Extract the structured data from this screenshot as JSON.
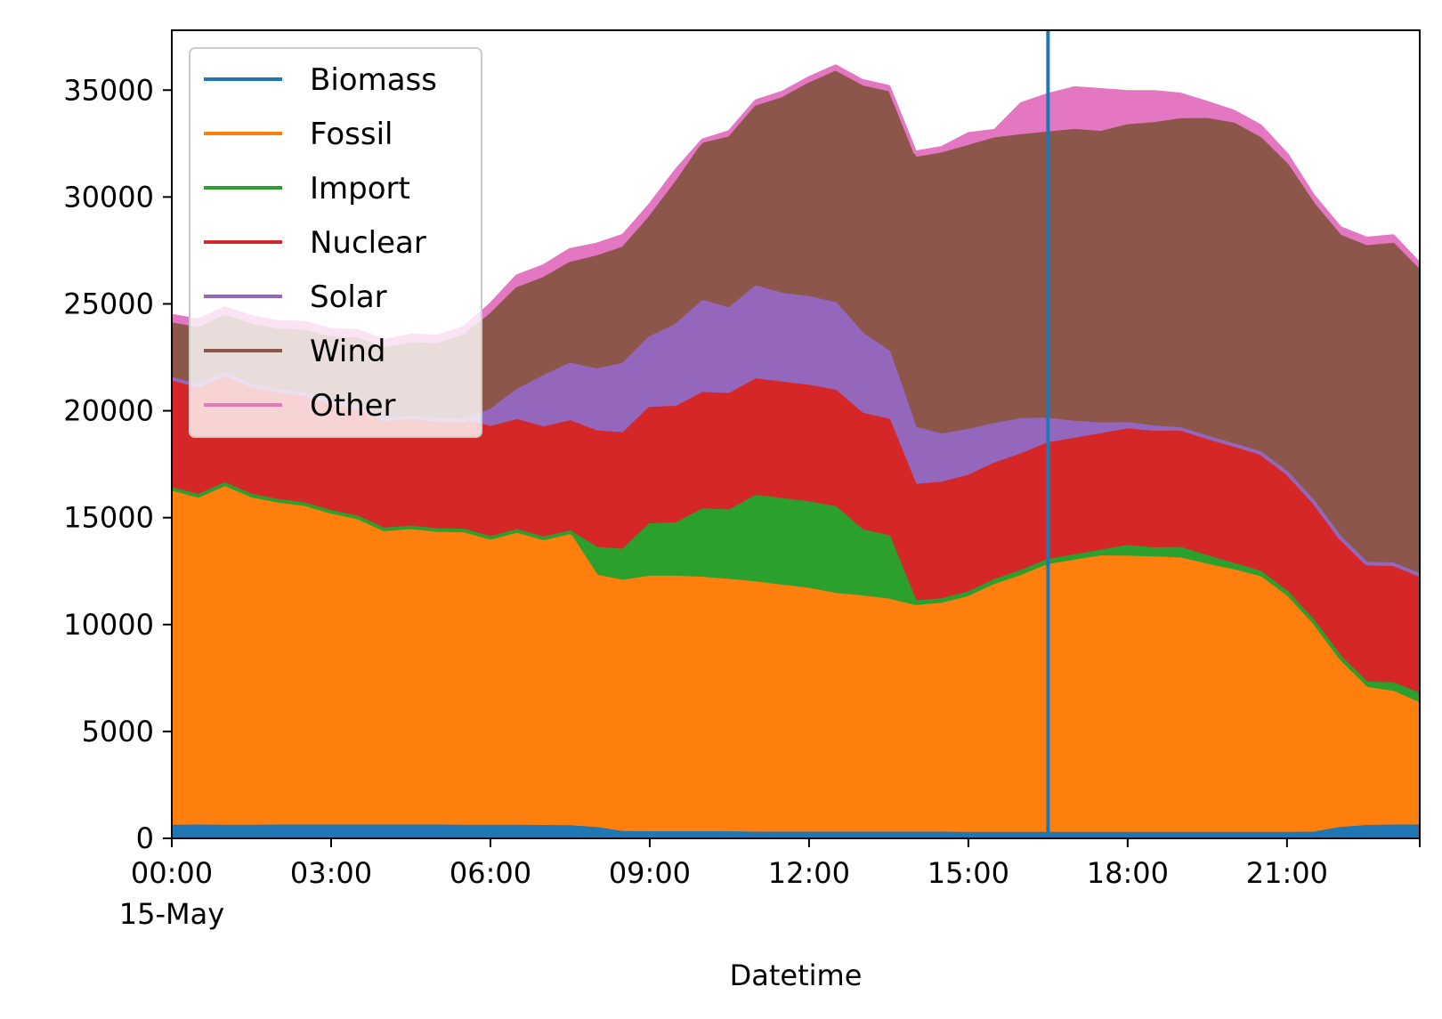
{
  "chart_data": {
    "type": "area",
    "stacked": true,
    "title": "",
    "xlabel": "Datetime",
    "ylabel": "",
    "x_unit_note": "hours of 15-May",
    "xlim": [
      0,
      23.5
    ],
    "ylim": [
      0,
      37800
    ],
    "x": [
      0,
      0.5,
      1,
      1.5,
      2,
      2.5,
      3,
      3.5,
      4,
      4.5,
      5,
      5.5,
      6,
      6.5,
      7,
      7.5,
      8,
      8.5,
      9,
      9.5,
      10,
      10.5,
      11,
      11.5,
      12,
      12.5,
      13,
      13.5,
      14,
      14.5,
      15,
      15.5,
      16,
      16.5,
      17,
      17.5,
      18,
      18.5,
      19,
      19.5,
      20,
      20.5,
      21,
      21.5,
      22,
      22.5,
      23,
      23.5
    ],
    "series": [
      {
        "name": "Biomass",
        "color": "#1f77b4",
        "values": [
          550,
          560,
          550,
          550,
          560,
          560,
          560,
          560,
          560,
          560,
          560,
          550,
          550,
          550,
          540,
          530,
          450,
          260,
          250,
          250,
          250,
          250,
          230,
          230,
          230,
          230,
          230,
          230,
          230,
          230,
          220,
          220,
          220,
          220,
          220,
          220,
          220,
          220,
          220,
          220,
          220,
          220,
          220,
          230,
          450,
          540,
          560,
          560
        ]
      },
      {
        "name": "Fossil",
        "color": "#ff7f0e",
        "values": [
          15650,
          15310,
          15870,
          15330,
          15080,
          14920,
          14560,
          14300,
          13740,
          13840,
          13710,
          13700,
          13350,
          13680,
          13340,
          13640,
          11800,
          11750,
          11950,
          11950,
          11900,
          11800,
          11700,
          11550,
          11400,
          11170,
          11050,
          10900,
          10600,
          10700,
          11030,
          11600,
          12020,
          12530,
          12730,
          12930,
          12920,
          12880,
          12830,
          12540,
          12280,
          11960,
          11020,
          9660,
          7770,
          6460,
          6260,
          5710
        ]
      },
      {
        "name": "Import",
        "color": "#2ca02c",
        "values": [
          150,
          150,
          150,
          150,
          150,
          150,
          150,
          150,
          150,
          150,
          150,
          150,
          150,
          150,
          150,
          150,
          1300,
          1450,
          2450,
          2500,
          3200,
          3250,
          4050,
          4050,
          4050,
          4050,
          3100,
          2970,
          220,
          220,
          220,
          230,
          240,
          240,
          250,
          270,
          500,
          430,
          500,
          400,
          300,
          250,
          250,
          250,
          250,
          250,
          400,
          450
        ]
      },
      {
        "name": "Nuclear",
        "color": "#d62728",
        "values": [
          5150,
          5150,
          5150,
          5150,
          5150,
          5150,
          5150,
          5150,
          5150,
          5150,
          5150,
          5150,
          5150,
          5150,
          5150,
          5150,
          5450,
          5450,
          5450,
          5450,
          5450,
          5450,
          5450,
          5450,
          5450,
          5450,
          5450,
          5450,
          5450,
          5450,
          5450,
          5450,
          5450,
          5450,
          5450,
          5450,
          5450,
          5450,
          5450,
          5450,
          5450,
          5450,
          5450,
          5450,
          5450,
          5450,
          5450,
          5450
        ]
      },
      {
        "name": "Solar",
        "color": "#9467bd",
        "values": [
          0,
          0,
          0,
          0,
          0,
          0,
          0,
          0,
          0,
          0,
          0,
          0,
          800,
          1400,
          2400,
          2700,
          2900,
          3250,
          3300,
          3850,
          4300,
          4000,
          4350,
          4150,
          4150,
          4100,
          3750,
          3200,
          2670,
          2250,
          2150,
          1850,
          1650,
          1150,
          800,
          500,
          300,
          250,
          150,
          150,
          150,
          150,
          150,
          150,
          150,
          150,
          150,
          150
        ]
      },
      {
        "name": "Wind",
        "color": "#8c564b",
        "values": [
          2550,
          2660,
          2680,
          2810,
          2820,
          2940,
          2970,
          3180,
          3280,
          3430,
          3510,
          3930,
          4470,
          4770,
          4590,
          4710,
          5280,
          5440,
          5610,
          6660,
          7360,
          8000,
          8410,
          9160,
          9990,
          10820,
          11560,
          12110,
          12620,
          13150,
          13280,
          13360,
          13280,
          13390,
          13650,
          13640,
          13930,
          14190,
          14450,
          14850,
          15000,
          14690,
          14390,
          13900,
          14090,
          14810,
          14950,
          14190
        ]
      },
      {
        "name": "Other",
        "color": "#e377c2",
        "values": [
          400,
          400,
          400,
          400,
          400,
          400,
          400,
          400,
          400,
          400,
          400,
          400,
          500,
          600,
          600,
          650,
          600,
          600,
          600,
          600,
          200,
          300,
          300,
          300,
          300,
          300,
          300,
          300,
          300,
          300,
          600,
          400,
          1500,
          1800,
          2000,
          2000,
          1600,
          1500,
          1200,
          800,
          600,
          600,
          500,
          400,
          400,
          400,
          400,
          350
        ]
      }
    ],
    "vertical_line": {
      "x": 16.5,
      "color": "#1f77b4"
    },
    "x_ticks": [
      {
        "x": 0,
        "label": "00:00",
        "sublabel": "15-May"
      },
      {
        "x": 3,
        "label": "03:00"
      },
      {
        "x": 6,
        "label": "06:00"
      },
      {
        "x": 9,
        "label": "09:00"
      },
      {
        "x": 12,
        "label": "12:00"
      },
      {
        "x": 15,
        "label": "15:00"
      },
      {
        "x": 18,
        "label": "18:00"
      },
      {
        "x": 21,
        "label": "21:00"
      }
    ],
    "y_ticks": [
      {
        "y": 0,
        "label": "0"
      },
      {
        "y": 5000,
        "label": "5000"
      },
      {
        "y": 10000,
        "label": "10000"
      },
      {
        "y": 15000,
        "label": "15000"
      },
      {
        "y": 20000,
        "label": "20000"
      },
      {
        "y": 25000,
        "label": "25000"
      },
      {
        "y": 30000,
        "label": "30000"
      },
      {
        "y": 35000,
        "label": "35000"
      }
    ],
    "grid": false,
    "legend": {
      "position": "top-left"
    }
  }
}
